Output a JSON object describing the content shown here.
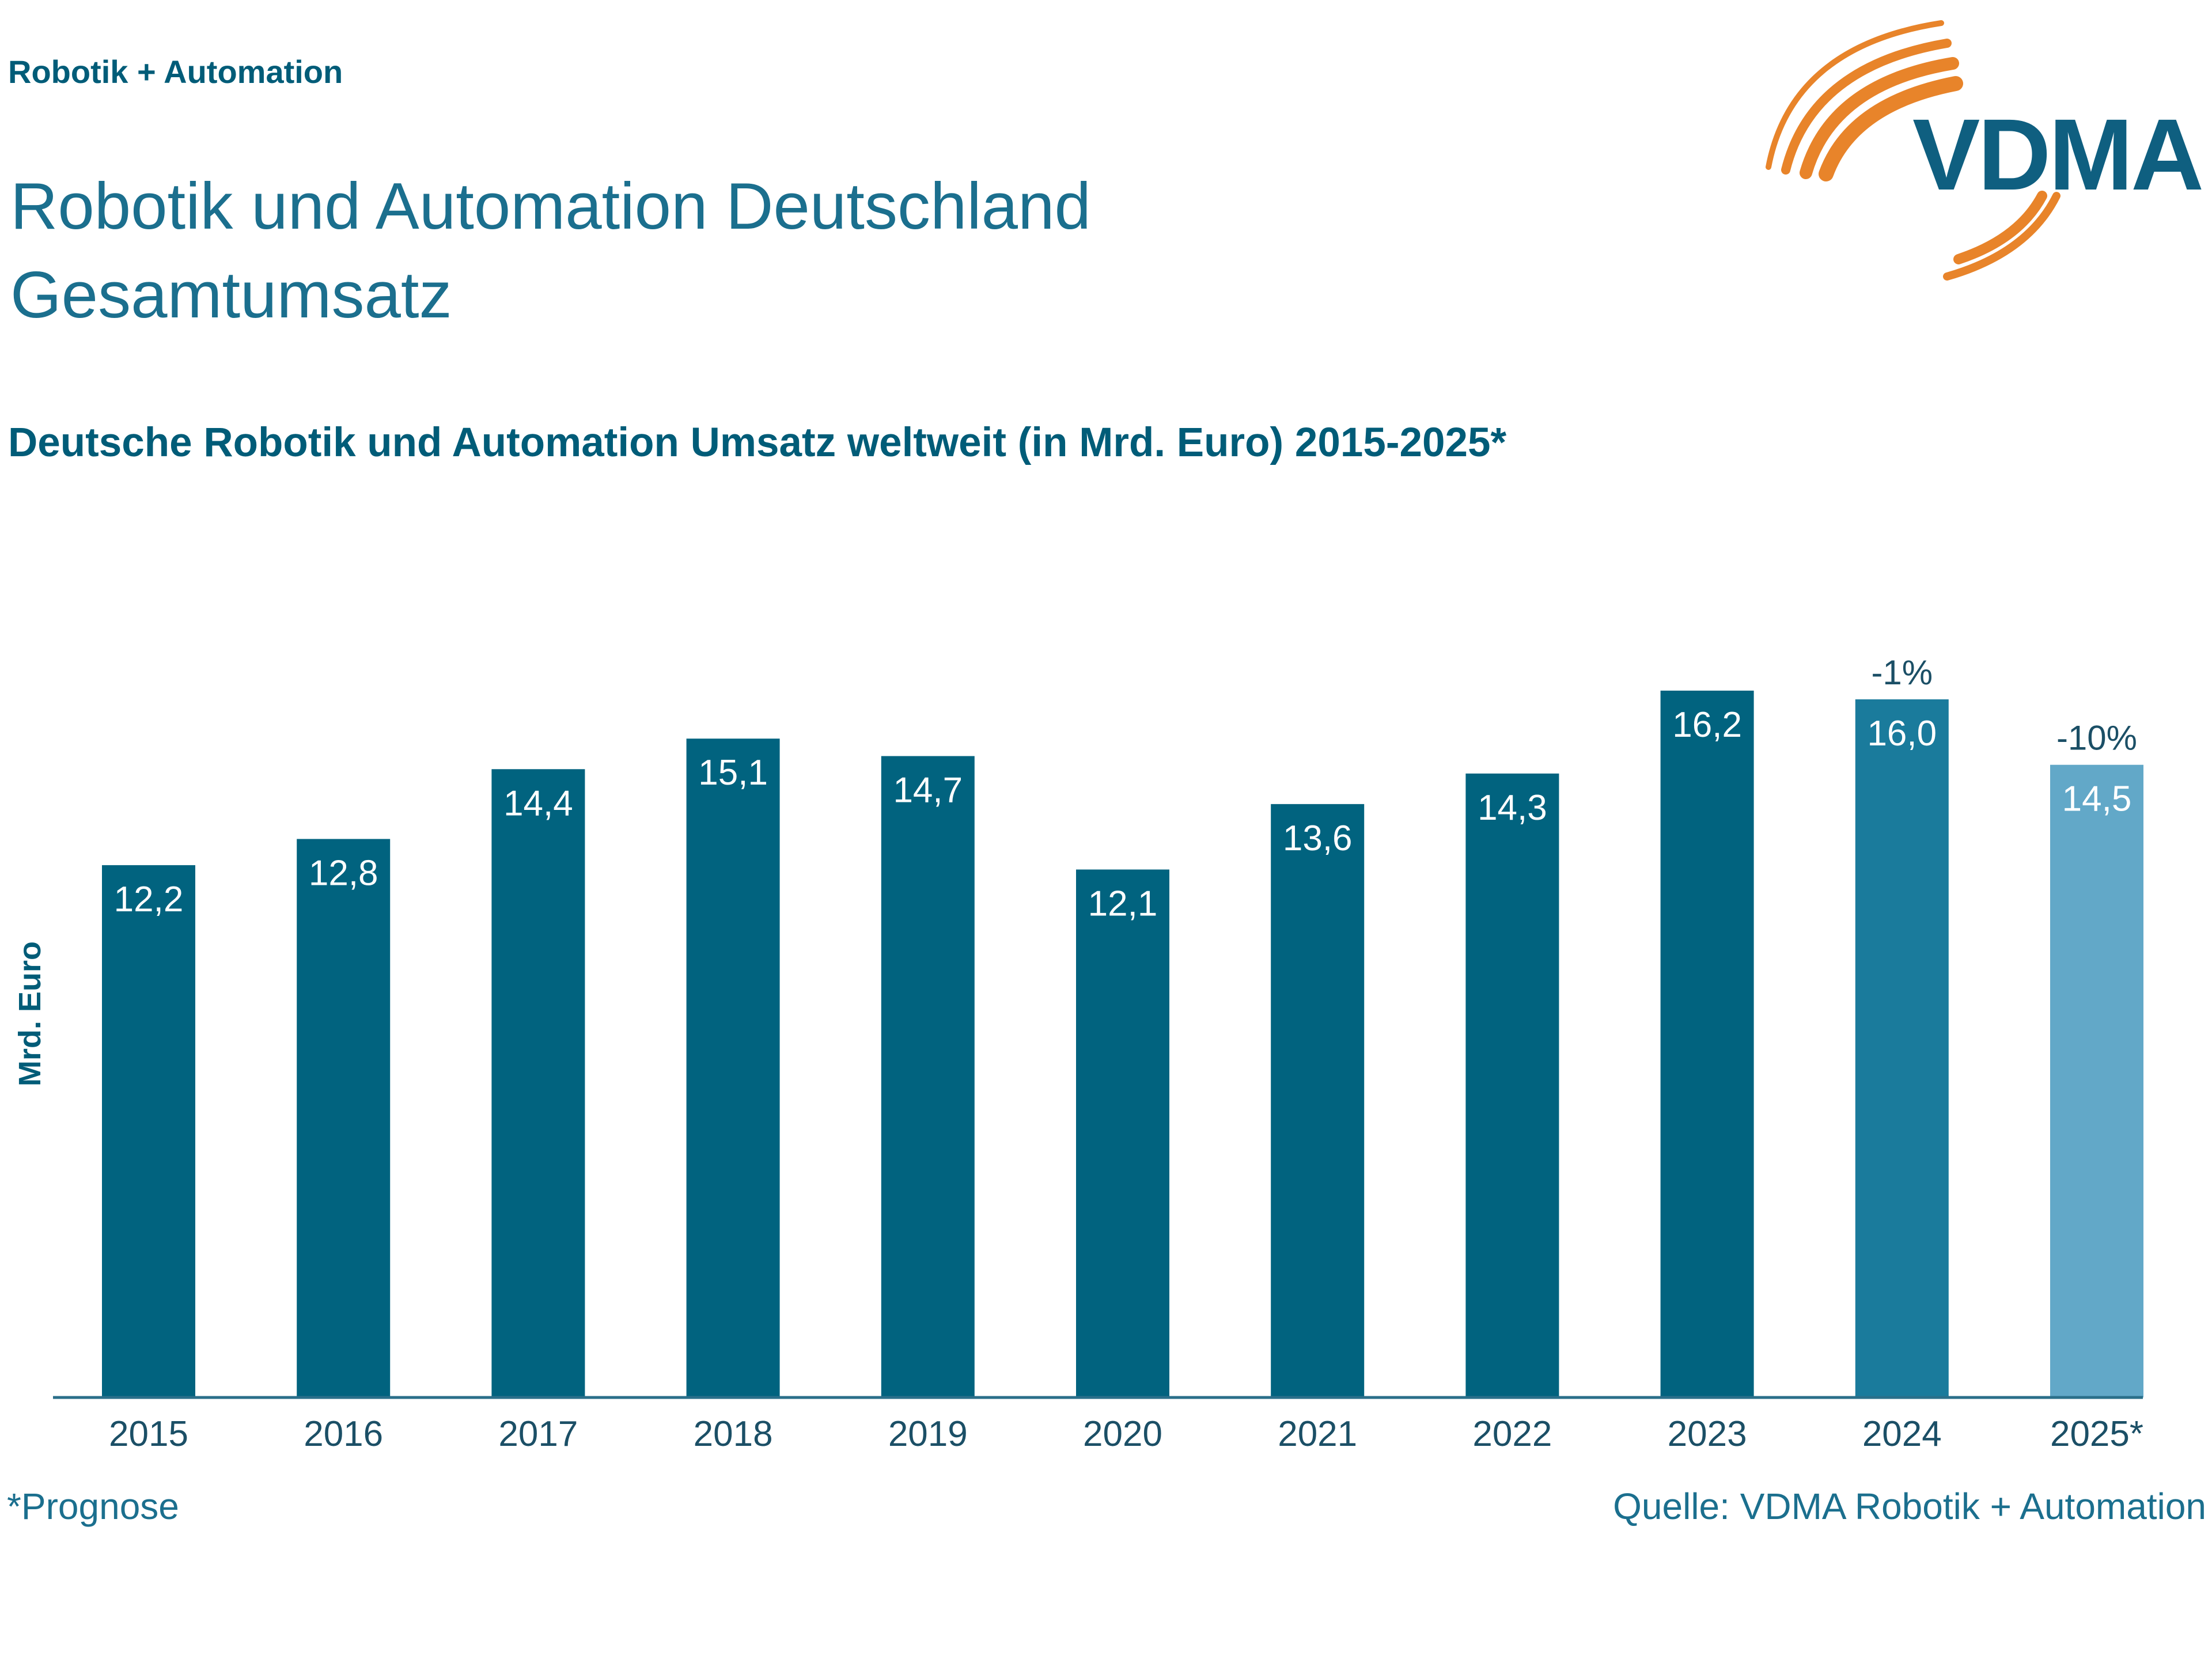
{
  "header": {
    "kicker": "Robotik + Automation",
    "title_line1": "Robotik und Automation Deutschland",
    "title_line2": "Gesamtumsatz"
  },
  "logo": {
    "text": "VDMA",
    "text_color": "#0f5f80",
    "arc_color": "#e8842a"
  },
  "chart_data": {
    "type": "bar",
    "title": "Deutsche Robotik und Automation Umsatz weltweit (in Mrd. Euro) 2015-2025*",
    "xlabel": "",
    "ylabel": "Mrd. Euro",
    "ylim": [
      0,
      18.1
    ],
    "grid": false,
    "categories": [
      "2015",
      "2016",
      "2017",
      "2018",
      "2019",
      "2020",
      "2021",
      "2022",
      "2023",
      "2024",
      "2025*"
    ],
    "values": [
      12.2,
      12.8,
      14.4,
      15.1,
      14.7,
      12.1,
      13.6,
      14.3,
      16.2,
      16.0,
      14.5
    ],
    "value_labels": [
      "12,2",
      "12,8",
      "14,4",
      "15,1",
      "14,7",
      "12,1",
      "13,6",
      "14,3",
      "16,2",
      "16,0",
      "14,5"
    ],
    "bar_colors": [
      "#01637f",
      "#01637f",
      "#01637f",
      "#01637f",
      "#01637f",
      "#01637f",
      "#01637f",
      "#01637f",
      "#01637f",
      "#1a7b9c",
      "#62a8c8"
    ],
    "annotations": [
      {
        "category": "2024",
        "text": "-1%"
      },
      {
        "category": "2025*",
        "text": "-10%"
      }
    ],
    "label_color": "#ffffff",
    "axis_color": "#2a6f8a",
    "tick_color": "#1b4f66"
  },
  "footer": {
    "footnote": "*Prognose",
    "source": "Quelle: VDMA Robotik + Automation"
  }
}
